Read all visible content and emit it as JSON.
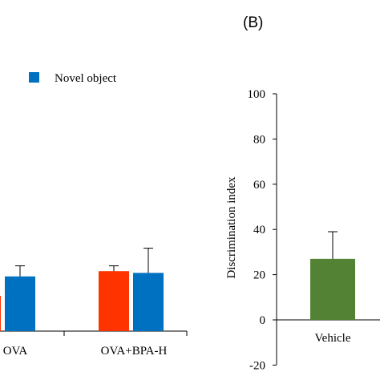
{
  "chart_data": [
    {
      "type": "bar",
      "panel_label": "",
      "categories": [
        "OVA",
        "OVA+BPA-H"
      ],
      "series": [
        {
          "name": "",
          "color": "#ff3300",
          "values": [
            20,
            34
          ],
          "errors": [
            0,
            3
          ]
        },
        {
          "name": "Novel object",
          "color": "#0070c0",
          "values": [
            31,
            33
          ],
          "errors": [
            6,
            14
          ]
        }
      ],
      "xlabel": "",
      "ylabel": "",
      "ylim": [
        0,
        60
      ],
      "grid": false,
      "legend": "top"
    },
    {
      "type": "bar",
      "panel_label": "(B)",
      "categories": [
        "Vehicle"
      ],
      "values": [
        27
      ],
      "errors": [
        12
      ],
      "color": "#548235",
      "xlabel": "",
      "ylabel": "Discrimination index",
      "ylim": [
        -20,
        100
      ],
      "yticks": [
        -20,
        0,
        20,
        40,
        60,
        80,
        100
      ],
      "grid": false
    }
  ]
}
